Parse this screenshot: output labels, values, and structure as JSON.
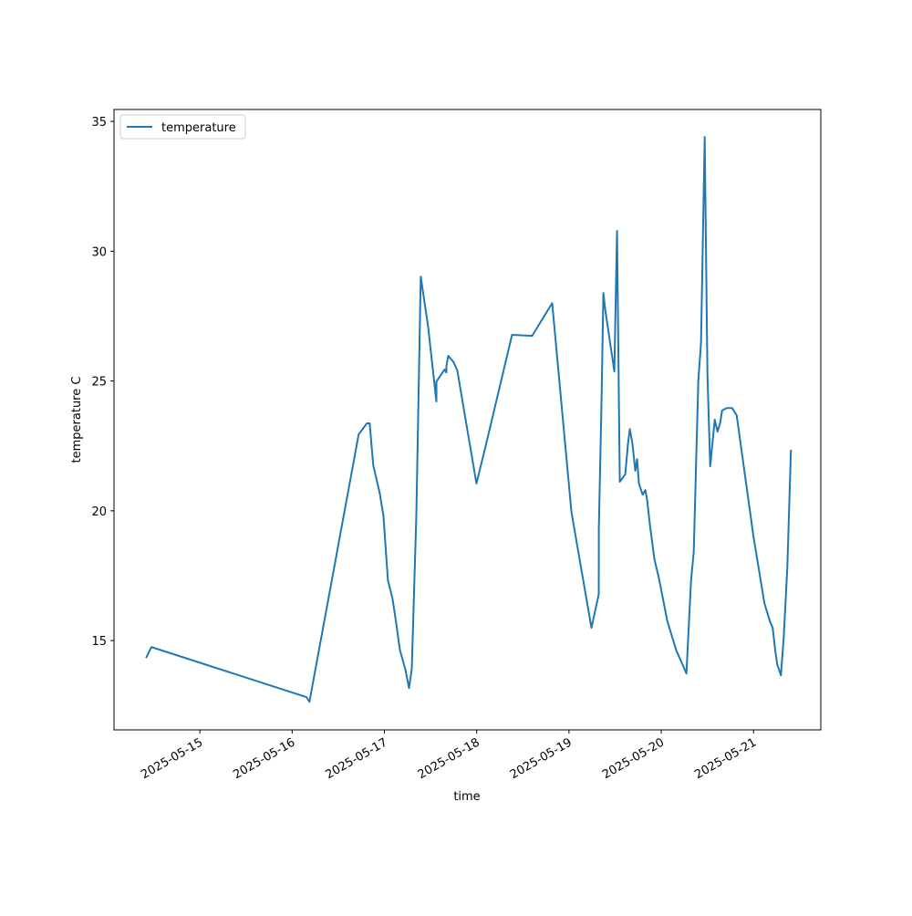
{
  "chart_data": {
    "type": "line",
    "x_label": "time",
    "y_label": "temperature C",
    "x": [
      "2025-05-14 10:00",
      "2025-05-14 11:25",
      "2025-05-16 03:46",
      "2025-05-16 04:30",
      "2025-05-16 17:18",
      "2025-05-16 19:26",
      "2025-05-16 20:10",
      "2025-05-16 21:06",
      "2025-05-16 22:46",
      "2025-05-16 23:44",
      "2025-05-17 00:55",
      "2025-05-17 02:06",
      "2025-05-17 03:04",
      "2025-05-17 04:01",
      "2025-05-17 05:27",
      "2025-05-17 06:24",
      "2025-05-17 07:07",
      "2025-05-17 08:18",
      "2025-05-17 09:27",
      "2025-05-17 11:22",
      "2025-05-17 13:31",
      "2025-05-17 13:32",
      "2025-05-17 15:38",
      "2025-05-17 16:07",
      "2025-05-17 16:08",
      "2025-05-17 16:36",
      "2025-05-17 18:01",
      "2025-05-17 18:58",
      "2025-05-17 23:56",
      "2025-05-18 02:33",
      "2025-05-18 09:12",
      "2025-05-18 14:25",
      "2025-05-18 19:38",
      "2025-05-19 00:38",
      "2025-05-19 05:51",
      "2025-05-19 07:45",
      "2025-05-19 07:46",
      "2025-05-19 08:28",
      "2025-05-19 08:57",
      "2025-05-19 09:25",
      "2025-05-19 11:48",
      "2025-05-19 12:30",
      "2025-05-19 13:13",
      "2025-05-19 14:38",
      "2025-05-19 15:21",
      "2025-05-19 15:50",
      "2025-05-19 16:32",
      "2025-05-19 17:15",
      "2025-05-19 17:43",
      "2025-05-19 18:12",
      "2025-05-19 19:09",
      "2025-05-19 19:52",
      "2025-05-19 20:20",
      "2025-05-19 21:03",
      "2025-05-19 22:14",
      "2025-05-19 23:25",
      "2025-05-20 01:33",
      "2025-05-20 02:59",
      "2025-05-20 03:56",
      "2025-05-20 04:53",
      "2025-05-20 06:33",
      "2025-05-20 07:44",
      "2025-05-20 08:27",
      "2025-05-20 09:38",
      "2025-05-20 10:21",
      "2025-05-20 11:18",
      "2025-05-20 12:01",
      "2025-05-20 12:44",
      "2025-05-20 13:55",
      "2025-05-20 14:38",
      "2025-05-20 15:21",
      "2025-05-20 15:49",
      "2025-05-20 17:00",
      "2025-05-20 18:26",
      "2025-05-20 19:37",
      "2025-05-21 00:00",
      "2025-05-21 02:50",
      "2025-05-21 04:16",
      "2025-05-21 04:59",
      "2025-05-21 05:41",
      "2025-05-21 06:10",
      "2025-05-21 07:07",
      "2025-05-21 07:50",
      "2025-05-21 08:47",
      "2025-05-21 09:44"
    ],
    "series": [
      {
        "name": "temperature",
        "color": "#1f77b4",
        "values": [
          14.33,
          14.75,
          12.82,
          12.64,
          22.94,
          23.37,
          23.37,
          21.75,
          20.69,
          19.82,
          17.32,
          16.62,
          15.67,
          14.65,
          13.88,
          13.17,
          13.91,
          19.82,
          29.02,
          27.09,
          24.21,
          24.98,
          25.44,
          25.33,
          25.58,
          25.97,
          25.72,
          25.4,
          21.05,
          22.63,
          26.78,
          26.74,
          28.0,
          19.96,
          15.49,
          16.79,
          19.29,
          24.21,
          28.39,
          27.76,
          25.37,
          30.78,
          21.12,
          21.4,
          22.59,
          23.15,
          22.56,
          21.54,
          21.99,
          21.05,
          20.62,
          20.8,
          20.41,
          19.46,
          18.13,
          17.39,
          15.77,
          15.07,
          14.61,
          14.3,
          13.73,
          17.28,
          18.41,
          24.98,
          26.49,
          34.4,
          25.26,
          21.71,
          23.51,
          23.05,
          23.4,
          23.86,
          23.96,
          23.96,
          23.68,
          19.0,
          16.44,
          15.74,
          15.49,
          14.58,
          14.09,
          13.66,
          15.07,
          17.78,
          22.35
        ]
      }
    ],
    "xlim": [
      "2025-05-14 01:40",
      "2025-05-21 17:30"
    ],
    "xticks": [
      "2025-05-15",
      "2025-05-16",
      "2025-05-17",
      "2025-05-18",
      "2025-05-19",
      "2025-05-20",
      "2025-05-21"
    ],
    "ylim": [
      11.56,
      35.46
    ],
    "yticks": [
      15,
      20,
      25,
      30,
      35
    ],
    "legend": "upper left"
  }
}
